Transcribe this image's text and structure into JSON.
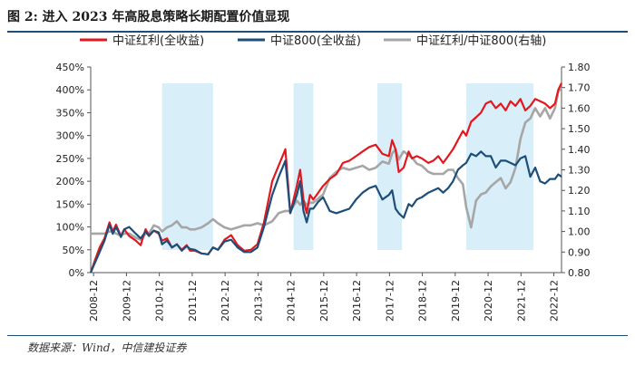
{
  "title": "图 2: 进入 2023 年高股息策略长期配置价值显现",
  "source": "数据来源：Wind，中信建投证券",
  "colors": {
    "red": "#e3181f",
    "navy": "#1d4e7a",
    "gray": "#a6a6a6",
    "shade": "#d8effa",
    "rule": "#1f4e79"
  },
  "chart_data": {
    "type": "line",
    "title": "图 2: 进入 2023 年高股息策略长期配置价值显现",
    "x_unit": "year",
    "x_range": [
      2008.83,
      2023.15
    ],
    "x_ticks": [
      "2008-12",
      "2009-12",
      "2010-12",
      "2011-12",
      "2012-12",
      "2013-12",
      "2014-12",
      "2015-12",
      "2016-12",
      "2017-12",
      "2018-12",
      "2019-12",
      "2020-12",
      "2021-12",
      "2022-12"
    ],
    "x_tick_values": [
      2008.917,
      2009.917,
      2010.917,
      2011.917,
      2012.917,
      2013.917,
      2014.917,
      2015.917,
      2016.917,
      2017.917,
      2018.917,
      2019.917,
      2020.917,
      2021.917,
      2022.917
    ],
    "y_left": {
      "min": 0,
      "max": 450,
      "ticks": [
        "0%",
        "50%",
        "100%",
        "150%",
        "200%",
        "250%",
        "300%",
        "350%",
        "400%",
        "450%"
      ],
      "tick_values": [
        0,
        50,
        100,
        150,
        200,
        250,
        300,
        350,
        400,
        450
      ]
    },
    "y_right": {
      "min": 0.8,
      "max": 1.8,
      "ticks": [
        "0.80",
        "0.90",
        "1.00",
        "1.10",
        "1.20",
        "1.30",
        "1.40",
        "1.50",
        "1.60",
        "1.70",
        "1.80"
      ],
      "tick_values": [
        0.8,
        0.9,
        1.0,
        1.1,
        1.2,
        1.3,
        1.4,
        1.5,
        1.6,
        1.7,
        1.8
      ]
    },
    "shaded_periods": [
      [
        2011.0,
        2012.55
      ],
      [
        2015.0,
        2015.6
      ],
      [
        2017.55,
        2018.3
      ],
      [
        2020.25,
        2022.3
      ]
    ],
    "legend": [
      "中证红利(全收益)",
      "中证800(全收益)",
      "中证红利/中证800(右轴)"
    ],
    "series": [
      {
        "name": "中证红利(全收益)",
        "axis": "left",
        "color_key": "red",
        "x": [
          2008.83,
          2008.95,
          2009.1,
          2009.25,
          2009.4,
          2009.5,
          2009.6,
          2009.75,
          2009.85,
          2010.0,
          2010.2,
          2010.35,
          2010.5,
          2010.6,
          2010.75,
          2010.9,
          2011.0,
          2011.15,
          2011.3,
          2011.45,
          2011.6,
          2011.75,
          2011.85,
          2012.0,
          2012.2,
          2012.4,
          2012.55,
          2012.7,
          2012.9,
          2013.1,
          2013.3,
          2013.5,
          2013.7,
          2013.9,
          2014.1,
          2014.35,
          2014.55,
          2014.75,
          2014.9,
          2015.1,
          2015.2,
          2015.3,
          2015.4,
          2015.5,
          2015.6,
          2015.75,
          2015.9,
          2016.1,
          2016.3,
          2016.5,
          2016.7,
          2016.9,
          2017.1,
          2017.3,
          2017.5,
          2017.7,
          2017.9,
          2018.0,
          2018.1,
          2018.2,
          2018.35,
          2018.5,
          2018.6,
          2018.75,
          2018.9,
          2019.1,
          2019.25,
          2019.4,
          2019.55,
          2019.7,
          2019.85,
          2020.0,
          2020.15,
          2020.25,
          2020.4,
          2020.55,
          2020.7,
          2020.85,
          2021.0,
          2021.15,
          2021.3,
          2021.45,
          2021.6,
          2021.75,
          2021.9,
          2022.05,
          2022.2,
          2022.35,
          2022.5,
          2022.65,
          2022.8,
          2022.95,
          2023.05,
          2023.15
        ],
        "values": [
          0,
          25,
          55,
          75,
          110,
          90,
          105,
          80,
          95,
          80,
          70,
          60,
          95,
          82,
          92,
          85,
          70,
          75,
          55,
          62,
          50,
          60,
          48,
          48,
          42,
          40,
          55,
          50,
          72,
          82,
          60,
          48,
          50,
          62,
          110,
          200,
          235,
          270,
          130,
          190,
          225,
          160,
          130,
          170,
          160,
          175,
          190,
          205,
          215,
          240,
          245,
          255,
          265,
          275,
          280,
          260,
          255,
          290,
          270,
          220,
          230,
          265,
          250,
          255,
          250,
          240,
          245,
          255,
          240,
          255,
          270,
          290,
          310,
          300,
          330,
          340,
          350,
          370,
          375,
          360,
          370,
          355,
          375,
          365,
          380,
          355,
          365,
          380,
          375,
          370,
          360,
          370,
          400,
          415
        ]
      },
      {
        "name": "中证800(全收益)",
        "axis": "left",
        "color_key": "navy",
        "x": [
          2008.83,
          2008.95,
          2009.1,
          2009.25,
          2009.4,
          2009.5,
          2009.6,
          2009.75,
          2009.85,
          2010.0,
          2010.2,
          2010.35,
          2010.5,
          2010.6,
          2010.75,
          2010.9,
          2011.0,
          2011.15,
          2011.3,
          2011.45,
          2011.6,
          2011.75,
          2011.85,
          2012.0,
          2012.2,
          2012.4,
          2012.55,
          2012.7,
          2012.9,
          2013.1,
          2013.3,
          2013.5,
          2013.7,
          2013.9,
          2014.1,
          2014.35,
          2014.55,
          2014.75,
          2014.9,
          2015.1,
          2015.2,
          2015.3,
          2015.4,
          2015.5,
          2015.6,
          2015.75,
          2015.9,
          2016.1,
          2016.3,
          2016.5,
          2016.7,
          2016.9,
          2017.1,
          2017.3,
          2017.5,
          2017.7,
          2017.9,
          2018.0,
          2018.1,
          2018.2,
          2018.35,
          2018.5,
          2018.6,
          2018.75,
          2018.9,
          2019.1,
          2019.25,
          2019.4,
          2019.55,
          2019.7,
          2019.85,
          2020.0,
          2020.15,
          2020.25,
          2020.4,
          2020.55,
          2020.7,
          2020.85,
          2021.0,
          2021.15,
          2021.3,
          2021.45,
          2021.6,
          2021.75,
          2021.9,
          2022.05,
          2022.2,
          2022.35,
          2022.5,
          2022.65,
          2022.8,
          2022.95,
          2023.05,
          2023.15
        ],
        "values": [
          0,
          20,
          45,
          70,
          105,
          85,
          100,
          78,
          95,
          100,
          85,
          75,
          90,
          80,
          92,
          88,
          62,
          70,
          55,
          62,
          48,
          58,
          52,
          50,
          42,
          40,
          55,
          50,
          68,
          72,
          55,
          45,
          45,
          55,
          100,
          170,
          210,
          245,
          130,
          170,
          200,
          135,
          110,
          140,
          140,
          155,
          165,
          135,
          130,
          135,
          140,
          160,
          175,
          185,
          190,
          160,
          170,
          180,
          140,
          130,
          120,
          150,
          145,
          160,
          165,
          175,
          180,
          185,
          175,
          185,
          200,
          225,
          235,
          240,
          260,
          255,
          265,
          255,
          255,
          230,
          245,
          245,
          240,
          235,
          250,
          255,
          210,
          230,
          200,
          195,
          205,
          205,
          215,
          210
        ]
      },
      {
        "name": "中证红利/中证800(右轴)",
        "axis": "right",
        "color_key": "gray",
        "x": [
          2008.83,
          2008.95,
          2009.1,
          2009.25,
          2009.4,
          2009.5,
          2009.6,
          2009.75,
          2009.85,
          2010.0,
          2010.2,
          2010.35,
          2010.5,
          2010.6,
          2010.75,
          2010.9,
          2011.0,
          2011.15,
          2011.3,
          2011.45,
          2011.6,
          2011.75,
          2011.85,
          2012.0,
          2012.2,
          2012.4,
          2012.55,
          2012.7,
          2012.9,
          2013.1,
          2013.3,
          2013.5,
          2013.7,
          2013.9,
          2014.1,
          2014.35,
          2014.55,
          2014.75,
          2014.9,
          2015.1,
          2015.2,
          2015.3,
          2015.4,
          2015.5,
          2015.6,
          2015.75,
          2015.9,
          2016.1,
          2016.3,
          2016.5,
          2016.7,
          2016.9,
          2017.1,
          2017.3,
          2017.5,
          2017.7,
          2017.9,
          2018.0,
          2018.1,
          2018.2,
          2018.35,
          2018.5,
          2018.6,
          2018.75,
          2018.9,
          2019.1,
          2019.25,
          2019.4,
          2019.55,
          2019.7,
          2019.85,
          2020.0,
          2020.15,
          2020.25,
          2020.4,
          2020.55,
          2020.7,
          2020.85,
          2021.0,
          2021.15,
          2021.3,
          2021.45,
          2021.6,
          2021.75,
          2021.9,
          2022.05,
          2022.2,
          2022.35,
          2022.5,
          2022.65,
          2022.8,
          2022.95,
          2023.05,
          2023.15
        ],
        "values": [
          0.99,
          0.99,
          0.99,
          0.99,
          1.0,
          1.0,
          0.99,
          0.98,
          0.99,
          0.99,
          0.97,
          0.96,
          0.99,
          0.99,
          1.03,
          1.02,
          1.0,
          1.02,
          1.03,
          1.05,
          1.02,
          1.02,
          1.01,
          1.01,
          1.02,
          1.04,
          1.06,
          1.04,
          1.02,
          1.01,
          1.02,
          1.03,
          1.03,
          1.04,
          1.03,
          1.05,
          1.09,
          1.1,
          1.1,
          1.15,
          1.13,
          1.15,
          1.13,
          1.14,
          1.14,
          1.16,
          1.18,
          1.26,
          1.29,
          1.31,
          1.3,
          1.31,
          1.32,
          1.3,
          1.31,
          1.34,
          1.33,
          1.38,
          1.4,
          1.35,
          1.39,
          1.37,
          1.36,
          1.33,
          1.32,
          1.29,
          1.28,
          1.28,
          1.28,
          1.3,
          1.3,
          1.26,
          1.23,
          1.12,
          1.02,
          1.15,
          1.18,
          1.19,
          1.22,
          1.24,
          1.26,
          1.21,
          1.24,
          1.31,
          1.45,
          1.53,
          1.55,
          1.6,
          1.56,
          1.6,
          1.55,
          1.6,
          1.68,
          1.7
        ]
      }
    ]
  }
}
